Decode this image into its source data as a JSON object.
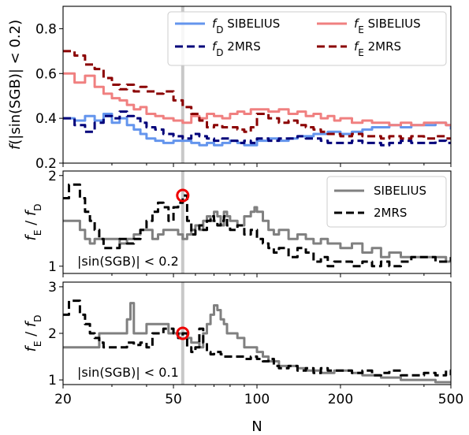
{
  "chart_data": [
    {
      "type": "line",
      "ylabel": "f(|sin(SGB)| < 0.2)",
      "xscale": "log",
      "xlim": [
        20,
        500
      ],
      "ylim": [
        0.2,
        0.9
      ],
      "yticks": [
        "0.2",
        "0.4",
        "0.6",
        "0.8"
      ],
      "vline_x": 54,
      "legend": {
        "placement": "top-right",
        "columns": 2
      },
      "series": [
        {
          "name": "fD SIBELIUS",
          "name_parts": [
            "f",
            "D",
            " SIBELIUS"
          ],
          "color": "#6495ED",
          "style": "solid",
          "x": [
            20,
            22,
            24,
            26,
            28,
            30,
            32,
            34,
            36,
            38,
            40,
            43,
            46,
            50,
            54,
            58,
            62,
            66,
            70,
            75,
            80,
            85,
            90,
            95,
            100,
            110,
            120,
            130,
            140,
            150,
            160,
            170,
            180,
            190,
            200,
            220,
            240,
            260,
            280,
            300,
            330,
            360,
            400,
            440,
            480,
            500
          ],
          "y": [
            0.4,
            0.39,
            0.41,
            0.39,
            0.42,
            0.38,
            0.4,
            0.37,
            0.35,
            0.33,
            0.31,
            0.3,
            0.29,
            0.3,
            0.3,
            0.29,
            0.28,
            0.29,
            0.28,
            0.29,
            0.3,
            0.29,
            0.28,
            0.28,
            0.3,
            0.31,
            0.3,
            0.31,
            0.32,
            0.32,
            0.33,
            0.33,
            0.34,
            0.34,
            0.33,
            0.34,
            0.35,
            0.36,
            0.36,
            0.37,
            0.36,
            0.37,
            0.37,
            0.38,
            0.37,
            0.35
          ]
        },
        {
          "name": "fD 2MRS",
          "name_parts": [
            "f",
            "D",
            " 2MRS"
          ],
          "color": "#00007A",
          "style": "dashed",
          "x": [
            20,
            22,
            24,
            26,
            28,
            30,
            32,
            34,
            36,
            38,
            40,
            43,
            46,
            50,
            54,
            58,
            62,
            66,
            70,
            75,
            80,
            85,
            90,
            95,
            100,
            110,
            120,
            130,
            140,
            150,
            160,
            170,
            180,
            190,
            200,
            220,
            240,
            260,
            280,
            300,
            330,
            360,
            400,
            440,
            480,
            500
          ],
          "y": [
            0.4,
            0.37,
            0.34,
            0.38,
            0.41,
            0.4,
            0.43,
            0.41,
            0.4,
            0.38,
            0.36,
            0.35,
            0.33,
            0.32,
            0.31,
            0.33,
            0.32,
            0.31,
            0.3,
            0.31,
            0.3,
            0.29,
            0.3,
            0.29,
            0.31,
            0.3,
            0.31,
            0.31,
            0.32,
            0.31,
            0.31,
            0.3,
            0.29,
            0.29,
            0.29,
            0.3,
            0.29,
            0.29,
            0.28,
            0.29,
            0.3,
            0.29,
            0.29,
            0.3,
            0.29,
            0.29
          ]
        },
        {
          "name": "fE SIBELIUS",
          "name_parts": [
            "f",
            "E",
            " SIBELIUS"
          ],
          "color": "#F08080",
          "style": "solid",
          "x": [
            20,
            22,
            24,
            26,
            28,
            30,
            32,
            34,
            36,
            38,
            40,
            43,
            46,
            50,
            54,
            58,
            62,
            66,
            70,
            75,
            80,
            85,
            90,
            95,
            100,
            110,
            120,
            130,
            140,
            150,
            160,
            170,
            180,
            190,
            200,
            220,
            240,
            260,
            280,
            300,
            330,
            360,
            400,
            440,
            480,
            500
          ],
          "y": [
            0.6,
            0.56,
            0.59,
            0.54,
            0.51,
            0.49,
            0.48,
            0.46,
            0.44,
            0.45,
            0.42,
            0.41,
            0.4,
            0.39,
            0.38,
            0.41,
            0.4,
            0.42,
            0.41,
            0.4,
            0.42,
            0.43,
            0.42,
            0.44,
            0.44,
            0.43,
            0.44,
            0.42,
            0.43,
            0.41,
            0.42,
            0.4,
            0.41,
            0.39,
            0.4,
            0.38,
            0.39,
            0.38,
            0.38,
            0.37,
            0.38,
            0.37,
            0.38,
            0.38,
            0.37,
            0.37
          ]
        },
        {
          "name": "fE 2MRS",
          "name_parts": [
            "f",
            "E",
            " 2MRS"
          ],
          "color": "#8B0000",
          "style": "dashed",
          "x": [
            20,
            22,
            24,
            26,
            28,
            30,
            32,
            34,
            36,
            38,
            40,
            43,
            46,
            50,
            54,
            58,
            62,
            66,
            70,
            75,
            80,
            85,
            90,
            95,
            100,
            110,
            120,
            130,
            140,
            150,
            160,
            170,
            180,
            190,
            200,
            220,
            240,
            260,
            280,
            300,
            330,
            360,
            400,
            440,
            480,
            500
          ],
          "y": [
            0.7,
            0.68,
            0.64,
            0.62,
            0.58,
            0.55,
            0.53,
            0.55,
            0.52,
            0.54,
            0.52,
            0.51,
            0.52,
            0.48,
            0.45,
            0.42,
            0.39,
            0.36,
            0.37,
            0.36,
            0.36,
            0.35,
            0.34,
            0.36,
            0.42,
            0.4,
            0.38,
            0.39,
            0.37,
            0.36,
            0.35,
            0.34,
            0.33,
            0.33,
            0.32,
            0.33,
            0.32,
            0.32,
            0.31,
            0.32,
            0.31,
            0.32,
            0.31,
            0.32,
            0.31,
            0.31
          ]
        }
      ]
    },
    {
      "type": "line",
      "ylabel_parts": [
        "f",
        "E",
        " / ",
        "f",
        "D"
      ],
      "xscale": "log",
      "xlim": [
        20,
        500
      ],
      "ylim": [
        0.92,
        2.05
      ],
      "yticks": [
        "1",
        "2"
      ],
      "vline_x": 54,
      "annotation": "|sin(SGB)| < 0.2",
      "marker": {
        "x": 54,
        "y": 1.78
      },
      "legend": {
        "placement": "top-right",
        "columns": 1
      },
      "series": [
        {
          "name": "SIBELIUS",
          "color": "#808080",
          "style": "solid",
          "x": [
            20,
            22,
            23,
            24,
            25,
            26,
            28,
            30,
            32,
            34,
            36,
            38,
            40,
            42,
            44,
            46,
            48,
            50,
            52,
            54,
            56,
            58,
            60,
            62,
            64,
            66,
            68,
            70,
            72,
            74,
            76,
            78,
            80,
            85,
            90,
            95,
            98,
            100,
            105,
            110,
            115,
            120,
            130,
            140,
            150,
            160,
            170,
            180,
            190,
            200,
            220,
            240,
            260,
            280,
            300,
            330,
            360,
            400,
            440,
            480,
            500
          ],
          "y": [
            1.5,
            1.5,
            1.4,
            1.3,
            1.25,
            1.3,
            1.3,
            1.3,
            1.25,
            1.3,
            1.35,
            1.4,
            1.4,
            1.3,
            1.35,
            1.4,
            1.4,
            1.4,
            1.35,
            1.3,
            1.35,
            1.4,
            1.45,
            1.4,
            1.5,
            1.55,
            1.5,
            1.6,
            1.55,
            1.45,
            1.6,
            1.55,
            1.5,
            1.45,
            1.55,
            1.6,
            1.65,
            1.6,
            1.5,
            1.4,
            1.35,
            1.4,
            1.3,
            1.35,
            1.3,
            1.25,
            1.3,
            1.25,
            1.25,
            1.2,
            1.25,
            1.15,
            1.2,
            1.1,
            1.15,
            1.1,
            1.1,
            1.1,
            1.1,
            1.05,
            1.1
          ]
        },
        {
          "name": "2MRS",
          "color": "#000000",
          "style": "dashed",
          "x": [
            20,
            21,
            22,
            23,
            24,
            25,
            26,
            27,
            28,
            30,
            32,
            34,
            36,
            38,
            40,
            42,
            44,
            46,
            48,
            50,
            52,
            54,
            56,
            58,
            60,
            62,
            64,
            66,
            68,
            70,
            72,
            74,
            76,
            78,
            80,
            85,
            90,
            95,
            100,
            105,
            110,
            115,
            120,
            130,
            140,
            150,
            160,
            170,
            180,
            190,
            200,
            220,
            240,
            260,
            280,
            300,
            330,
            360,
            400,
            440,
            480,
            500
          ],
          "y": [
            1.75,
            1.9,
            1.9,
            1.75,
            1.6,
            1.5,
            1.4,
            1.3,
            1.2,
            1.2,
            1.3,
            1.25,
            1.3,
            1.4,
            1.5,
            1.6,
            1.7,
            1.65,
            1.5,
            1.65,
            1.7,
            1.78,
            1.5,
            1.35,
            1.4,
            1.45,
            1.4,
            1.5,
            1.55,
            1.5,
            1.45,
            1.5,
            1.55,
            1.45,
            1.4,
            1.45,
            1.35,
            1.4,
            1.3,
            1.25,
            1.2,
            1.15,
            1.2,
            1.1,
            1.2,
            1.15,
            1.05,
            1.1,
            1.0,
            1.05,
            1.05,
            1.0,
            1.05,
            1.0,
            1.05,
            1.0,
            1.05,
            1.1,
            1.1,
            1.05,
            1.05,
            1.1
          ]
        }
      ]
    },
    {
      "type": "line",
      "ylabel_parts": [
        "f",
        "E",
        " / ",
        "f",
        "D"
      ],
      "xlabel": "N",
      "xscale": "log",
      "xlim": [
        20,
        500
      ],
      "ylim": [
        0.9,
        3.1
      ],
      "yticks": [
        "1",
        "2",
        "3"
      ],
      "xticks": [
        "20",
        "50",
        "100",
        "200",
        "500"
      ],
      "vline_x": 54,
      "annotation": "|sin(SGB)| < 0.1",
      "marker": {
        "x": 54,
        "y": 2.0
      },
      "series": [
        {
          "name": "SIBELIUS",
          "color": "#808080",
          "style": "solid",
          "x": [
            20,
            22,
            24,
            26,
            27,
            28,
            30,
            32,
            34,
            35,
            36,
            38,
            40,
            42,
            44,
            46,
            48,
            50,
            52,
            54,
            56,
            58,
            60,
            62,
            64,
            66,
            68,
            70,
            72,
            74,
            76,
            78,
            80,
            85,
            90,
            95,
            100,
            105,
            110,
            115,
            120,
            130,
            140,
            150,
            160,
            170,
            180,
            190,
            200,
            220,
            240,
            260,
            280,
            300,
            330,
            360,
            400,
            440,
            480,
            500
          ],
          "y": [
            1.7,
            1.7,
            1.7,
            1.7,
            2.0,
            2.0,
            2.0,
            2.0,
            2.3,
            2.65,
            2.0,
            2.0,
            2.2,
            2.2,
            2.2,
            2.2,
            2.0,
            2.0,
            2.0,
            2.0,
            1.9,
            1.8,
            1.8,
            1.7,
            2.0,
            2.2,
            2.4,
            2.6,
            2.5,
            2.3,
            2.2,
            2.0,
            2.0,
            1.9,
            1.7,
            1.7,
            1.6,
            1.5,
            1.4,
            1.4,
            1.3,
            1.3,
            1.25,
            1.2,
            1.2,
            1.15,
            1.15,
            1.2,
            1.2,
            1.15,
            1.1,
            1.1,
            1.05,
            1.05,
            1.0,
            1.0,
            1.0,
            0.95,
            0.95,
            0.95
          ]
        },
        {
          "name": "2MRS",
          "color": "#000000",
          "style": "dashed",
          "x": [
            20,
            21,
            22,
            23,
            24,
            25,
            26,
            27,
            28,
            30,
            32,
            34,
            36,
            38,
            40,
            42,
            44,
            46,
            48,
            50,
            52,
            54,
            56,
            58,
            60,
            62,
            64,
            66,
            68,
            70,
            72,
            74,
            76,
            78,
            80,
            85,
            90,
            95,
            100,
            105,
            110,
            115,
            120,
            130,
            140,
            150,
            160,
            170,
            180,
            190,
            200,
            220,
            240,
            260,
            280,
            300,
            330,
            360,
            400,
            440,
            480,
            500
          ],
          "y": [
            2.4,
            2.7,
            2.7,
            2.4,
            2.2,
            2.0,
            1.9,
            1.8,
            1.7,
            1.7,
            1.7,
            1.8,
            1.75,
            1.8,
            1.7,
            2.0,
            2.0,
            2.1,
            2.1,
            2.0,
            1.9,
            2.0,
            1.7,
            1.6,
            1.7,
            2.1,
            1.8,
            1.6,
            1.55,
            1.6,
            1.6,
            1.55,
            1.5,
            1.5,
            1.5,
            1.5,
            1.45,
            1.5,
            1.45,
            1.4,
            1.45,
            1.3,
            1.25,
            1.3,
            1.2,
            1.25,
            1.15,
            1.25,
            1.2,
            1.2,
            1.2,
            1.15,
            1.2,
            1.1,
            1.15,
            1.2,
            1.1,
            1.1,
            1.15,
            1.1,
            1.2,
            1.1
          ]
        }
      ]
    }
  ]
}
